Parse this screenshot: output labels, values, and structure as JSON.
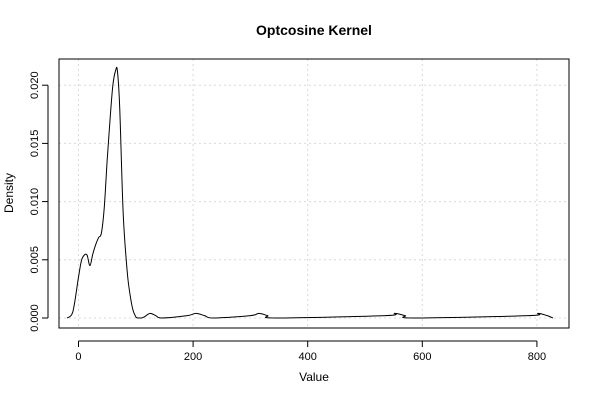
{
  "chart_data": {
    "type": "line",
    "title": "Optcosine Kernel",
    "xlabel": "Value",
    "ylabel": "Density",
    "xlim": [
      -34,
      856
    ],
    "ylim": [
      -0.00086,
      0.02225
    ],
    "xticks": [
      0,
      200,
      400,
      600,
      800
    ],
    "xtick_labels": [
      "0",
      "200",
      "400",
      "600",
      "800"
    ],
    "yticks": [
      0.0,
      0.005,
      0.01,
      0.015,
      0.02
    ],
    "ytick_labels": [
      "0.000",
      "0.005",
      "0.010",
      "0.015",
      "0.020"
    ],
    "grid": true,
    "series": [
      {
        "x": [
          -20,
          -10,
          0,
          5,
          10,
          15,
          20,
          25,
          30,
          35,
          40,
          45,
          50,
          55,
          60,
          65,
          68,
          72,
          78,
          85,
          90,
          95,
          100,
          103,
          106,
          110,
          115,
          125,
          135,
          145,
          190,
          205,
          220,
          235,
          300,
          315,
          330,
          345,
          535,
          552,
          570,
          585,
          785,
          802,
          818,
          828
        ],
        "y": [
          0.0,
          0.0005,
          0.0035,
          0.0049,
          0.0054,
          0.0054,
          0.0045,
          0.0055,
          0.0063,
          0.0069,
          0.0073,
          0.0095,
          0.0135,
          0.017,
          0.02,
          0.0213,
          0.0212,
          0.018,
          0.009,
          0.004,
          0.002,
          0.0007,
          0.0001,
          0.0,
          0.0,
          0.0,
          0.0001,
          0.0004,
          0.0002,
          0.0,
          0.0002,
          0.0004,
          0.0002,
          0.0,
          0.0002,
          0.0004,
          0.0002,
          0.0,
          0.0002,
          0.0004,
          0.0002,
          0.0,
          0.0002,
          0.0004,
          0.0002,
          0.0
        ]
      }
    ]
  }
}
